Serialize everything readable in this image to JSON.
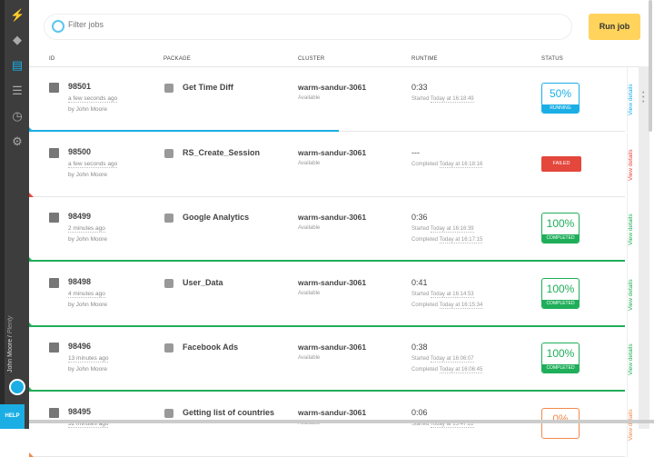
{
  "sidebar": {
    "items": [
      "lightning-icon",
      "packages-icon",
      "jobs-icon",
      "clusters-icon",
      "history-icon",
      "settings-icon"
    ],
    "user": "John Moore",
    "account": "Plenty",
    "help": "HELP"
  },
  "search": {
    "placeholder": "Filter jobs",
    "value": ""
  },
  "run_job": "Run job",
  "columns": [
    "ID",
    "PACKAGE",
    "CLUSTER",
    "RUNTIME",
    "STATUS"
  ],
  "colors": {
    "running": "#1aaee5",
    "failed": "#e4473c",
    "completed": "#1fae5a",
    "pending": "#f08a4b",
    "accent": "#ffd35c"
  },
  "jobs": [
    {
      "id": "98501",
      "ago": "a few seconds ago",
      "by": "by John Moore",
      "package": "Get Time Diff",
      "cluster": "warm-sandur-3061",
      "cluster_status": "Available",
      "runtime": "0:33",
      "line1_label": "Started",
      "line1_time": "Today at 16:18:49",
      "line2_label": "",
      "line2_time": "",
      "status": "running",
      "percent": "50%",
      "status_label": "RUNNING",
      "progress": 0.5,
      "view": "View details"
    },
    {
      "id": "98500",
      "ago": "a few seconds ago",
      "by": "by John Moore",
      "package": "RS_Create_Session",
      "cluster": "warm-sandur-3061",
      "cluster_status": "Available",
      "runtime": "---",
      "line1_label": "Completed",
      "line1_time": "Today at 16:18:16",
      "line2_label": "",
      "line2_time": "",
      "status": "failed",
      "percent": "",
      "status_label": "FAILED",
      "progress": 0,
      "view": "View details"
    },
    {
      "id": "98499",
      "ago": "2 minutes ago",
      "by": "by John Moore",
      "package": "Google Analytics",
      "cluster": "warm-sandur-3061",
      "cluster_status": "Available",
      "runtime": "0:36",
      "line1_label": "Started",
      "line1_time": "Today at 16:16:39",
      "line2_label": "Completed",
      "line2_time": "Today at 16:17:15",
      "status": "completed",
      "percent": "100%",
      "status_label": "COMPLETED",
      "progress": 1,
      "view": "View details"
    },
    {
      "id": "98498",
      "ago": "4 minutes ago",
      "by": "by John Moore",
      "package": "User_Data",
      "cluster": "warm-sandur-3061",
      "cluster_status": "Available",
      "runtime": "0:41",
      "line1_label": "Started",
      "line1_time": "Today at 16:14:53",
      "line2_label": "Completed",
      "line2_time": "Today at 16:15:34",
      "status": "completed",
      "percent": "100%",
      "status_label": "COMPLETED",
      "progress": 1,
      "view": "View details"
    },
    {
      "id": "98496",
      "ago": "13 minutes ago",
      "by": "by John Moore",
      "package": "Facebook Ads",
      "cluster": "warm-sandur-3061",
      "cluster_status": "Available",
      "runtime": "0:38",
      "line1_label": "Started",
      "line1_time": "Today at 16:06:07",
      "line2_label": "Completed",
      "line2_time": "Today at 16:06:45",
      "status": "completed",
      "percent": "100%",
      "status_label": "COMPLETED",
      "progress": 1,
      "view": "View details"
    },
    {
      "id": "98495",
      "ago": "32 minutes ago",
      "by": "",
      "package": "Getting list of countries",
      "cluster": "warm-sandur-3061",
      "cluster_status": "Available",
      "runtime": "0:06",
      "line1_label": "Started",
      "line1_time": "Today at 15:47:22",
      "line2_label": "",
      "line2_time": "",
      "status": "pending",
      "percent": "0%",
      "status_label": "",
      "progress": 0,
      "view": "View details"
    }
  ]
}
